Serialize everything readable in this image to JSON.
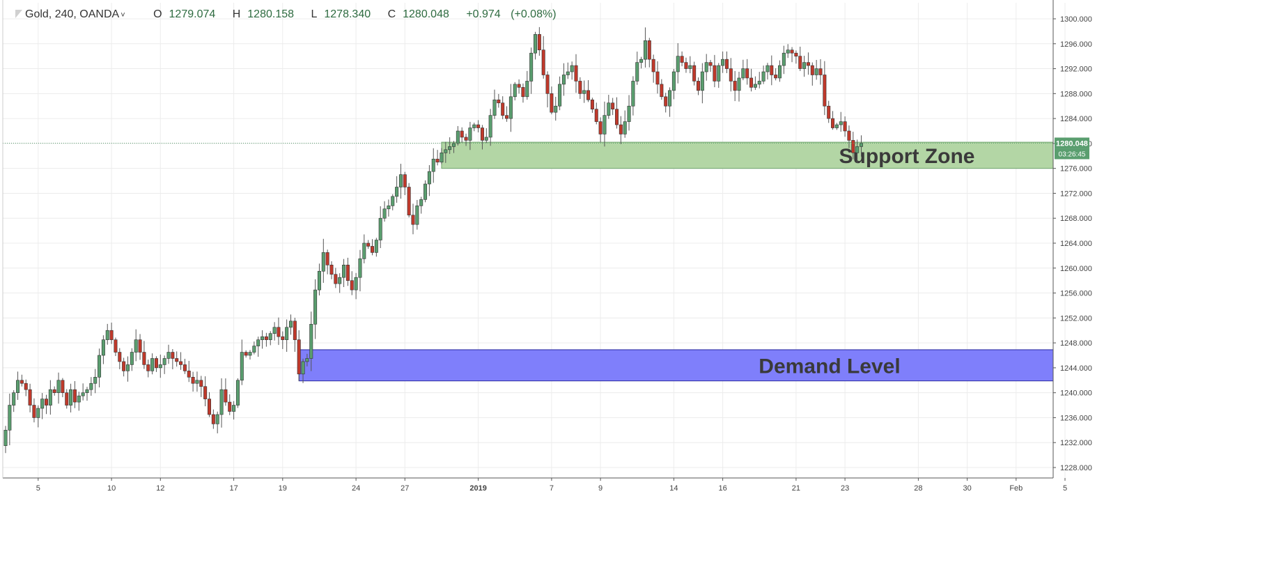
{
  "symbol": {
    "name": "Gold",
    "interval": "240",
    "broker": "OANDA",
    "caret": "˅"
  },
  "ohlc": {
    "open_label": "O",
    "open": "1279.074",
    "high_label": "H",
    "high": "1280.158",
    "low_label": "L",
    "low": "1278.340",
    "close_label": "C",
    "close": "1280.048",
    "change": "+0.974",
    "change_pct": "(+0.08%)"
  },
  "price_badge": "1280.048",
  "countdown_badge": "03:26:45",
  "colors": {
    "up": "#5a9e6f",
    "down": "#c0392b",
    "support_fill": "#b3d6a5",
    "support_stroke": "#6ea36c",
    "demand_fill": "#7f7ffb",
    "demand_stroke": "#2a2aa0",
    "grid": "#ececec",
    "axis_text": "#444444",
    "badge": "#5a9e6f"
  },
  "chart_data": {
    "type": "candlestick",
    "title": "",
    "y_axis_side": "right",
    "ylim": [
      1226,
      1302
    ],
    "y_ticks": [
      "1300.000",
      "1296.000",
      "1292.000",
      "1288.000",
      "1284.000",
      "1280.000",
      "1276.000",
      "1272.000",
      "1268.000",
      "1264.000",
      "1260.000",
      "1256.000",
      "1252.000",
      "1248.000",
      "1244.000",
      "1240.000",
      "1236.000",
      "1232.000",
      "1228.000"
    ],
    "x_ticks": [
      {
        "label": "5",
        "bar": 8
      },
      {
        "label": "10",
        "bar": 26
      },
      {
        "label": "12",
        "bar": 38
      },
      {
        "label": "17",
        "bar": 56
      },
      {
        "label": "19",
        "bar": 68
      },
      {
        "label": "24",
        "bar": 86
      },
      {
        "label": "27",
        "bar": 98
      },
      {
        "label": "2019",
        "bar": 116,
        "bold": true
      },
      {
        "label": "7",
        "bar": 134
      },
      {
        "label": "9",
        "bar": 146
      },
      {
        "label": "14",
        "bar": 164
      },
      {
        "label": "16",
        "bar": 176
      },
      {
        "label": "21",
        "bar": 194
      },
      {
        "label": "23",
        "bar": 206
      },
      {
        "label": "28",
        "bar": 224
      },
      {
        "label": "30",
        "bar": 236
      },
      {
        "label": "Feb",
        "bar": 248
      },
      {
        "label": "5",
        "bar": 260
      }
    ],
    "grid": true,
    "last_price": 1280.048,
    "zones": [
      {
        "label": "Support Zone",
        "top": 1280.2,
        "bottom": 1276.0,
        "start_bar": 107
      },
      {
        "label": "Demand Level",
        "top": 1246.9,
        "bottom": 1241.9,
        "start_bar": 72
      }
    ],
    "close": [
      1234.0,
      1238.0,
      1240.0,
      1242.0,
      1241.5,
      1240.5,
      1238.0,
      1236.0,
      1237.5,
      1239.0,
      1238.0,
      1240.5,
      1240.0,
      1242.0,
      1240.0,
      1238.0,
      1240.5,
      1238.5,
      1239.5,
      1240.0,
      1240.5,
      1241.5,
      1242.5,
      1246.0,
      1248.5,
      1250.0,
      1248.5,
      1246.5,
      1245.0,
      1243.5,
      1244.5,
      1246.5,
      1248.5,
      1246.5,
      1244.5,
      1243.5,
      1245.5,
      1244.0,
      1244.5,
      1245.5,
      1246.5,
      1245.5,
      1245.0,
      1244.5,
      1243.5,
      1242.5,
      1241.5,
      1242.0,
      1241.0,
      1239.0,
      1236.5,
      1235.0,
      1236.5,
      1240.5,
      1238.5,
      1237.0,
      1238.0,
      1242.0,
      1246.5,
      1246.0,
      1246.5,
      1247.5,
      1248.5,
      1249.0,
      1248.5,
      1249.5,
      1250.5,
      1249.0,
      1248.5,
      1250.5,
      1251.5,
      1248.5,
      1243.0,
      1245.0,
      1245.5,
      1251.0,
      1256.5,
      1259.5,
      1262.5,
      1260.5,
      1259.0,
      1257.5,
      1258.5,
      1260.5,
      1258.0,
      1256.5,
      1258.5,
      1261.5,
      1264.0,
      1263.5,
      1262.5,
      1264.5,
      1268.0,
      1269.5,
      1270.0,
      1271.5,
      1273.0,
      1275.0,
      1273.0,
      1268.5,
      1267.0,
      1270.0,
      1271.0,
      1273.5,
      1275.5,
      1277.5,
      1277.0,
      1278.5,
      1279.0,
      1279.5,
      1280.0,
      1282.0,
      1281.0,
      1280.5,
      1282.5,
      1283.0,
      1282.5,
      1280.5,
      1281.0,
      1284.5,
      1287.0,
      1286.5,
      1284.5,
      1284.0,
      1287.5,
      1289.5,
      1289.0,
      1287.5,
      1290.0,
      1294.5,
      1297.5,
      1295.0,
      1291.0,
      1288.0,
      1285.0,
      1286.0,
      1289.5,
      1291.0,
      1291.5,
      1292.5,
      1290.0,
      1288.0,
      1288.5,
      1287.0,
      1285.5,
      1283.5,
      1281.5,
      1284.5,
      1286.5,
      1285.5,
      1283.0,
      1281.5,
      1283.5,
      1286.0,
      1290.0,
      1293.0,
      1293.5,
      1296.5,
      1293.5,
      1291.5,
      1289.5,
      1287.5,
      1286.0,
      1288.5,
      1291.5,
      1294.0,
      1293.0,
      1292.0,
      1292.5,
      1290.0,
      1288.5,
      1291.5,
      1293.0,
      1292.5,
      1290.0,
      1292.5,
      1293.5,
      1292.0,
      1290.0,
      1288.5,
      1290.5,
      1292.0,
      1290.5,
      1289.0,
      1289.5,
      1290.0,
      1291.5,
      1292.5,
      1291.0,
      1290.5,
      1292.5,
      1294.5,
      1295.0,
      1294.5,
      1294.0,
      1292.0,
      1293.0,
      1292.5,
      1291.0,
      1292.0,
      1291.0,
      1286.0,
      1284.0,
      1282.5,
      1283.0,
      1283.5,
      1282.0,
      1280.5,
      1278.5,
      1279.5,
      1280.048
    ]
  }
}
